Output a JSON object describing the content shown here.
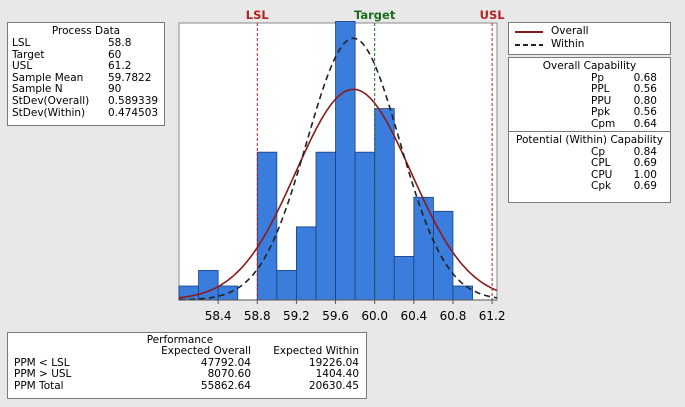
{
  "process_data": {
    "title": "Process Data",
    "rows": [
      {
        "label": "LSL",
        "value": "58.8"
      },
      {
        "label": "Target",
        "value": "60"
      },
      {
        "label": "USL",
        "value": "61.2"
      },
      {
        "label": "Sample Mean",
        "value": "59.7822"
      },
      {
        "label": "Sample N",
        "value": "90"
      },
      {
        "label": "StDev(Overall)",
        "value": "0.589339"
      },
      {
        "label": "StDev(Within)",
        "value": "0.474503"
      }
    ]
  },
  "legend": {
    "overall_label": "Overall",
    "within_label": "Within",
    "overall_color": "#8b1a1a",
    "within_color": "#222222"
  },
  "overall_capability": {
    "title": "Overall Capability",
    "rows": [
      {
        "label": "Pp",
        "value": "0.68"
      },
      {
        "label": "PPL",
        "value": "0.56"
      },
      {
        "label": "PPU",
        "value": "0.80"
      },
      {
        "label": "Ppk",
        "value": "0.56"
      },
      {
        "label": "Cpm",
        "value": "0.64"
      }
    ]
  },
  "within_capability": {
    "title": "Potential (Within) Capability",
    "rows": [
      {
        "label": "Cp",
        "value": "0.84"
      },
      {
        "label": "CPL",
        "value": "0.69"
      },
      {
        "label": "CPU",
        "value": "1.00"
      },
      {
        "label": "Cpk",
        "value": "0.69"
      }
    ]
  },
  "performance": {
    "title": "Performance",
    "col_overall": "Expected Overall",
    "col_within": "Expected Within",
    "rows": [
      {
        "label": "PPM < LSL",
        "overall": "47792.04",
        "within": "19226.04"
      },
      {
        "label": "PPM > USL",
        "overall": "8070.60",
        "within": "1404.40"
      },
      {
        "label": "PPM Total",
        "overall": "55862.64",
        "within": "20630.45"
      }
    ]
  },
  "chart_data": {
    "type": "bar",
    "title": "",
    "xlim": [
      58.0,
      61.25
    ],
    "ylim": [
      0,
      0.89
    ],
    "ticks": [
      "58.4",
      "58.8",
      "59.2",
      "59.6",
      "60.0",
      "60.4",
      "60.8",
      "61.2"
    ],
    "bin_width": 0.2,
    "bins": [
      58.1,
      58.3,
      58.5,
      58.7,
      58.9,
      59.1,
      59.3,
      59.5,
      59.7,
      59.9,
      60.1,
      60.3,
      60.5,
      60.7,
      60.9,
      61.1
    ],
    "heights": [
      0.045,
      0.095,
      0.045,
      0.0,
      0.475,
      0.095,
      0.235,
      0.475,
      0.895,
      0.475,
      0.615,
      0.14,
      0.33,
      0.285,
      0.045,
      0.0
    ],
    "bar_color": "#3b7ddd",
    "lines": [
      {
        "label": "LSL",
        "x": 58.8,
        "color": "#b22222"
      },
      {
        "label": "Target",
        "x": 60.0,
        "color": "#1d6b1d"
      },
      {
        "label": "USL",
        "x": 61.2,
        "color": "#b22222"
      }
    ],
    "curves": [
      {
        "name": "Overall",
        "mean": 59.7822,
        "sd": 0.589339,
        "style": "solid",
        "color": "#8b1a1a"
      },
      {
        "name": "Within",
        "mean": 59.7822,
        "sd": 0.474503,
        "style": "dashed",
        "color": "#222222"
      }
    ]
  }
}
